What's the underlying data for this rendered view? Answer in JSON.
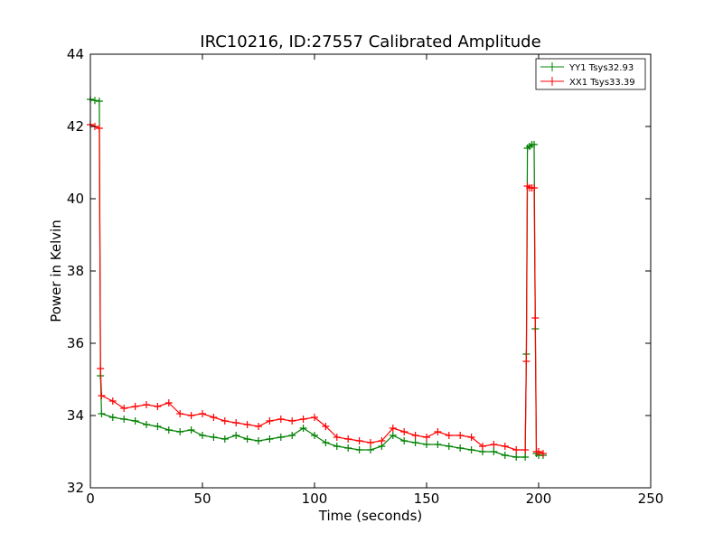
{
  "chart_data": {
    "type": "line",
    "title": "IRC10216, ID:27557 Calibrated Amplitude",
    "xlabel": "Time (seconds)",
    "ylabel": "Power in Kelvin",
    "xlim": [
      0,
      250
    ],
    "ylim": [
      32,
      44
    ],
    "xticks": [
      "0",
      "50",
      "100",
      "150",
      "200",
      "250"
    ],
    "yticks": [
      "32",
      "34",
      "36",
      "38",
      "40",
      "42",
      "44"
    ],
    "grid": false,
    "legend": "top-right",
    "series": [
      {
        "name": "YY1 Tsys32.93",
        "color": "#008000",
        "x": [
          0,
          2,
          4,
          4.5,
          5,
          10,
          15,
          20,
          25,
          30,
          35,
          40,
          45,
          50,
          55,
          60,
          65,
          70,
          75,
          80,
          85,
          90,
          95,
          100,
          105,
          110,
          115,
          120,
          125,
          130,
          135,
          140,
          145,
          150,
          155,
          160,
          165,
          170,
          175,
          180,
          185,
          190,
          194,
          194.5,
          195,
          196,
          197,
          198,
          198.5,
          199,
          200,
          202
        ],
        "y": [
          42.75,
          42.72,
          42.7,
          35.1,
          34.05,
          33.95,
          33.9,
          33.85,
          33.75,
          33.7,
          33.6,
          33.55,
          33.6,
          33.45,
          33.4,
          33.35,
          33.45,
          33.35,
          33.3,
          33.35,
          33.4,
          33.45,
          33.65,
          33.45,
          33.25,
          33.15,
          33.1,
          33.05,
          33.05,
          33.15,
          33.45,
          33.3,
          33.25,
          33.2,
          33.2,
          33.15,
          33.1,
          33.05,
          33.0,
          33.0,
          32.9,
          32.85,
          32.85,
          35.7,
          41.4,
          41.45,
          41.5,
          41.5,
          36.4,
          32.95,
          32.9,
          32.9
        ]
      },
      {
        "name": "XX1 Tsys33.39",
        "color": "#ff0000",
        "x": [
          0,
          2,
          4,
          4.5,
          5,
          10,
          15,
          20,
          25,
          30,
          35,
          40,
          45,
          50,
          55,
          60,
          65,
          70,
          75,
          80,
          85,
          90,
          95,
          100,
          105,
          110,
          115,
          120,
          125,
          130,
          135,
          140,
          145,
          150,
          155,
          160,
          165,
          170,
          175,
          180,
          185,
          190,
          194,
          194.5,
          195,
          196,
          197,
          198,
          198.5,
          199,
          200,
          202
        ],
        "y": [
          42.05,
          42.0,
          41.95,
          35.3,
          34.55,
          34.4,
          34.2,
          34.25,
          34.3,
          34.25,
          34.35,
          34.05,
          34.0,
          34.05,
          33.95,
          33.85,
          33.8,
          33.75,
          33.7,
          33.85,
          33.9,
          33.85,
          33.9,
          33.95,
          33.7,
          33.4,
          33.35,
          33.3,
          33.25,
          33.3,
          33.65,
          33.55,
          33.45,
          33.4,
          33.55,
          33.45,
          33.45,
          33.4,
          33.15,
          33.2,
          33.15,
          33.05,
          33.05,
          35.5,
          40.35,
          40.3,
          40.3,
          40.3,
          36.7,
          33.0,
          33.0,
          32.95
        ]
      }
    ]
  }
}
